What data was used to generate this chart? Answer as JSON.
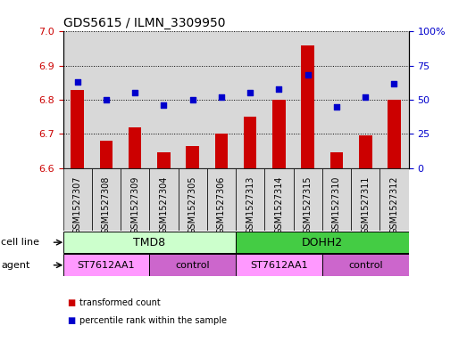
{
  "title": "GDS5615 / ILMN_3309950",
  "samples": [
    "GSM1527307",
    "GSM1527308",
    "GSM1527309",
    "GSM1527304",
    "GSM1527305",
    "GSM1527306",
    "GSM1527313",
    "GSM1527314",
    "GSM1527315",
    "GSM1527310",
    "GSM1527311",
    "GSM1527312"
  ],
  "transformed_counts": [
    6.83,
    6.68,
    6.72,
    6.645,
    6.665,
    6.7,
    6.75,
    6.8,
    6.96,
    6.645,
    6.695,
    6.8
  ],
  "percentile_ranks": [
    63,
    50,
    55,
    46,
    50,
    52,
    55,
    58,
    68,
    45,
    52,
    62
  ],
  "ylim_left": [
    6.6,
    7.0
  ],
  "ylim_right": [
    0,
    100
  ],
  "yticks_left": [
    6.6,
    6.7,
    6.8,
    6.9,
    7.0
  ],
  "yticks_right": [
    0,
    25,
    50,
    75,
    100
  ],
  "ytick_labels_right": [
    "0",
    "25",
    "50",
    "75",
    "100%"
  ],
  "bar_color": "#cc0000",
  "dot_color": "#0000cc",
  "bar_baseline": 6.6,
  "sample_bg_color": "#d8d8d8",
  "cell_line_groups": [
    {
      "label": "TMD8",
      "start": 0,
      "end": 6,
      "color": "#ccffcc"
    },
    {
      "label": "DOHH2",
      "start": 6,
      "end": 12,
      "color": "#44cc44"
    }
  ],
  "agent_groups": [
    {
      "label": "ST7612AA1",
      "start": 0,
      "end": 3,
      "color": "#ff99ff"
    },
    {
      "label": "control",
      "start": 3,
      "end": 6,
      "color": "#cc66cc"
    },
    {
      "label": "ST7612AA1",
      "start": 6,
      "end": 9,
      "color": "#ff99ff"
    },
    {
      "label": "control",
      "start": 9,
      "end": 12,
      "color": "#cc66cc"
    }
  ],
  "legend_items": [
    {
      "label": "transformed count",
      "color": "#cc0000"
    },
    {
      "label": "percentile rank within the sample",
      "color": "#0000cc"
    }
  ],
  "left_label_color": "#cc0000",
  "right_label_color": "#0000cc",
  "title_color": "#000000",
  "row_label_fontsize": 8,
  "tick_fontsize": 8,
  "sample_fontsize": 7,
  "cell_agent_fontsize": 8,
  "title_fontsize": 10
}
